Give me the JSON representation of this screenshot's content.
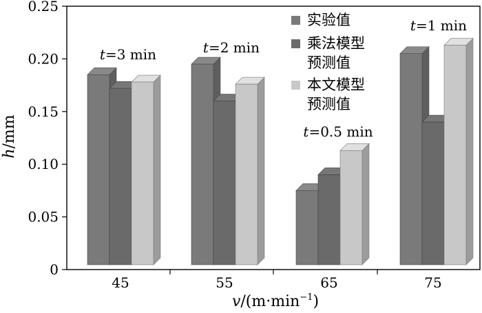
{
  "chart_data": {
    "type": "bar",
    "style": "3d",
    "categories": [
      "45",
      "55",
      "65",
      "75"
    ],
    "series": [
      {
        "name": "实验值",
        "values": [
          0.185,
          0.195,
          0.075,
          0.205
        ]
      },
      {
        "name": "乘法模型预测值",
        "values": [
          0.172,
          0.16,
          0.09,
          0.14
        ]
      },
      {
        "name": "本文模型预测值",
        "values": [
          0.178,
          0.176,
          0.113,
          0.213
        ]
      }
    ],
    "legend": {
      "position": "top-right",
      "entries": [
        {
          "line1": "实验值",
          "line2": ""
        },
        {
          "line1": "乘法模型",
          "line2": "预测值"
        },
        {
          "line1": "本文模型",
          "line2": "预测值"
        }
      ]
    },
    "annotations": [
      {
        "category": "45",
        "italic": "t",
        "text": "=3 min"
      },
      {
        "category": "55",
        "italic": "t",
        "text": "=2 min"
      },
      {
        "category": "65",
        "italic": "t",
        "text": "=0.5 min"
      },
      {
        "category": "75",
        "italic": "t",
        "text": "=1 min"
      }
    ],
    "ylabel": {
      "italic": "h",
      "rest": "/mm"
    },
    "xlabel": {
      "italic": "v",
      "rest": "/(m·min",
      "sup": "−1",
      "close": ")"
    },
    "ylim": [
      0,
      0.25
    ],
    "yticks": [
      "0",
      "0.05",
      "0.10",
      "0.15",
      "0.20",
      "0.25"
    ],
    "grid": false,
    "colors": {
      "series": [
        "#7a7a7a",
        "#6a6a6a",
        "#c8c8c8"
      ],
      "axis": "#000000"
    }
  }
}
